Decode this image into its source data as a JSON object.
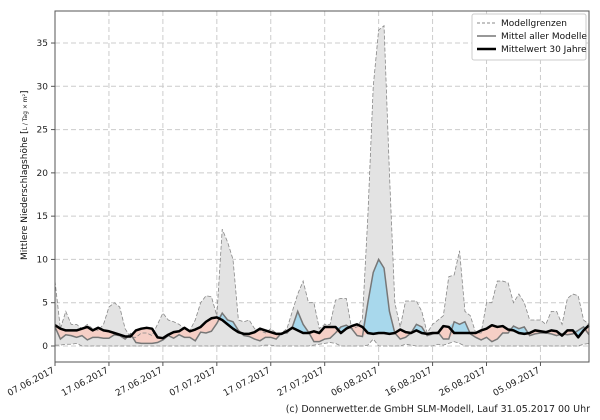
{
  "chart_data": {
    "type": "area",
    "xlabel": "",
    "ylabel": "Mittlere Niederschlagshöhe",
    "ylabel_unit_num": "L",
    "ylabel_unit_den": "Tag × m²",
    "ylim": [
      -1.85,
      38.7
    ],
    "yticks": [
      0,
      5,
      10,
      15,
      20,
      25,
      30,
      35
    ],
    "x_start": "07.06.2017",
    "x_end": "14.09.2017",
    "xtick_labels": [
      "07.06.2017",
      "17.06.2017",
      "27.06.2017",
      "07.07.2017",
      "17.07.2017",
      "27.07.2017",
      "06.08.2017",
      "16.08.2017",
      "26.08.2017",
      "05.09.2017"
    ],
    "grid": true,
    "legend_position": "top-right",
    "legend": [
      "Modellgrenzen",
      "Mittel aller Modelle",
      "Mittelwert 30 Jahre"
    ],
    "colors": {
      "range_fill": "#e3e3e3",
      "range_line": "#888888",
      "mean_line": "#777777",
      "clim_line": "#000000",
      "above": "#a8d8ec",
      "below": "#f6cfc6"
    },
    "series": [
      {
        "name": "Modellgrenzen (max)",
        "values": [
          7.5,
          2,
          4,
          2.5,
          2.5,
          2,
          2.5,
          2,
          1.8,
          2.5,
          4.5,
          5,
          4.5,
          2,
          1,
          1,
          1.5,
          1.5,
          1.2,
          2.5,
          3.8,
          3,
          2.8,
          2.5,
          2,
          1.8,
          3,
          5,
          5.8,
          5.7,
          3.5,
          13.5,
          12,
          10,
          3,
          2.8,
          3,
          2,
          1.8,
          1.5,
          2,
          1.5,
          1.5,
          2,
          4,
          6,
          7.5,
          5,
          5,
          2,
          2.5,
          2.5,
          5.3,
          5.5,
          5.5,
          2,
          2.2,
          3.2,
          15,
          30,
          36.5,
          37,
          20,
          5,
          2.2,
          5.2,
          5.2,
          5.2,
          4,
          1.5,
          2.5,
          3,
          3.5,
          8,
          8.2,
          11,
          4,
          3.5,
          1.5,
          1.5,
          5,
          5,
          7.5,
          7.5,
          7.3,
          5,
          6,
          5,
          3,
          3,
          3,
          2.5,
          4,
          4,
          2.5,
          5.5,
          6,
          5.8,
          3,
          2.5
        ]
      },
      {
        "name": "Modellgrenzen (min)",
        "values": [
          0.1,
          0.1,
          0.2,
          0.2,
          0.3,
          0,
          0,
          0,
          0,
          0,
          0,
          0,
          0,
          0,
          0,
          0,
          0,
          0,
          0,
          0,
          0,
          0,
          0,
          0,
          0,
          0,
          0,
          0,
          0,
          0,
          0,
          0,
          0,
          0,
          0,
          0,
          0,
          0,
          0,
          0.1,
          0.1,
          0,
          0,
          0,
          0,
          0,
          0,
          0,
          0.1,
          0.2,
          0.3,
          0.4,
          0.3,
          0,
          0,
          0,
          0,
          0,
          0.1,
          0.8,
          0,
          0,
          0,
          0,
          0,
          0.2,
          0.1,
          0,
          0,
          0,
          0,
          0.2,
          0.1,
          0.3,
          0.5,
          0.3,
          0,
          0,
          0,
          0,
          0,
          0,
          0,
          0,
          0,
          0,
          0,
          0,
          0,
          0,
          0,
          0,
          0,
          0,
          0,
          0,
          0,
          0,
          0.2,
          0.3
        ]
      },
      {
        "name": "Mittel aller Modelle",
        "values": [
          2.2,
          0.8,
          1.3,
          1.2,
          1,
          1.2,
          0.7,
          1,
          1,
          0.9,
          0.9,
          1.3,
          1.2,
          0.8,
          1.4,
          0.4,
          0.3,
          0.3,
          0.3,
          0.4,
          0.7,
          1.2,
          0.9,
          1.3,
          1,
          1,
          0.6,
          1.6,
          1.5,
          1.7,
          2.6,
          3.8,
          3,
          2.8,
          1.8,
          1.2,
          1.1,
          0.8,
          0.6,
          1,
          1,
          0.8,
          1.5,
          1.5,
          2.2,
          4,
          2.5,
          1.6,
          0.5,
          0.5,
          0.8,
          0.9,
          1.5,
          2.2,
          2.4,
          2,
          1.2,
          1.1,
          5,
          8.5,
          10,
          9,
          4,
          1.5,
          0.8,
          1,
          1.5,
          2.5,
          2.2,
          1.2,
          1.4,
          1.6,
          0.8,
          0.8,
          2.8,
          2.5,
          2.8,
          1.4,
          1,
          0.7,
          1,
          0.5,
          0.8,
          1.5,
          1.5,
          2.3,
          2,
          2.2,
          1.2,
          1.4,
          1.5,
          1.5,
          1.4,
          1.2,
          1.4,
          1.3,
          1.4,
          1.8,
          2.2,
          1.3
        ]
      },
      {
        "name": "Mittelwert 30 Jahre",
        "values": [
          2.4,
          2,
          1.8,
          1.8,
          1.8,
          2,
          2.2,
          1.8,
          2.1,
          1.8,
          1.7,
          1.5,
          1.3,
          1.1,
          1.1,
          1.8,
          2,
          2.1,
          2,
          1,
          0.9,
          1.3,
          1.6,
          1.7,
          2.1,
          1.7,
          1.9,
          2.2,
          2.8,
          3.2,
          3.3,
          3,
          2.5,
          2,
          1.6,
          1.4,
          1.4,
          1.6,
          2,
          1.8,
          1.6,
          1.4,
          1.4,
          1.7,
          2.1,
          1.8,
          1.5,
          1.5,
          1.7,
          1.5,
          2.2,
          2.2,
          2.2,
          1.5,
          2,
          2.3,
          2.5,
          2.2,
          1.5,
          1.4,
          1.5,
          1.5,
          1.4,
          1.5,
          1.9,
          1.6,
          1.5,
          1.8,
          1.5,
          1.4,
          1.5,
          1.5,
          2.3,
          2.2,
          1.5,
          1.5,
          1.5,
          1.5,
          1.5,
          1.8,
          2,
          2.4,
          2.2,
          2.3,
          1.9,
          1.8,
          1.5,
          1.4,
          1.5,
          1.8,
          1.7,
          1.6,
          1.8,
          1.7,
          1.2,
          1.8,
          1.8,
          1,
          1.8,
          2.4
        ]
      }
    ]
  },
  "credit": "(c) Donnerwetter.de GmbH SLM-Modell, Lauf 31.05.2017 00 Uhr"
}
